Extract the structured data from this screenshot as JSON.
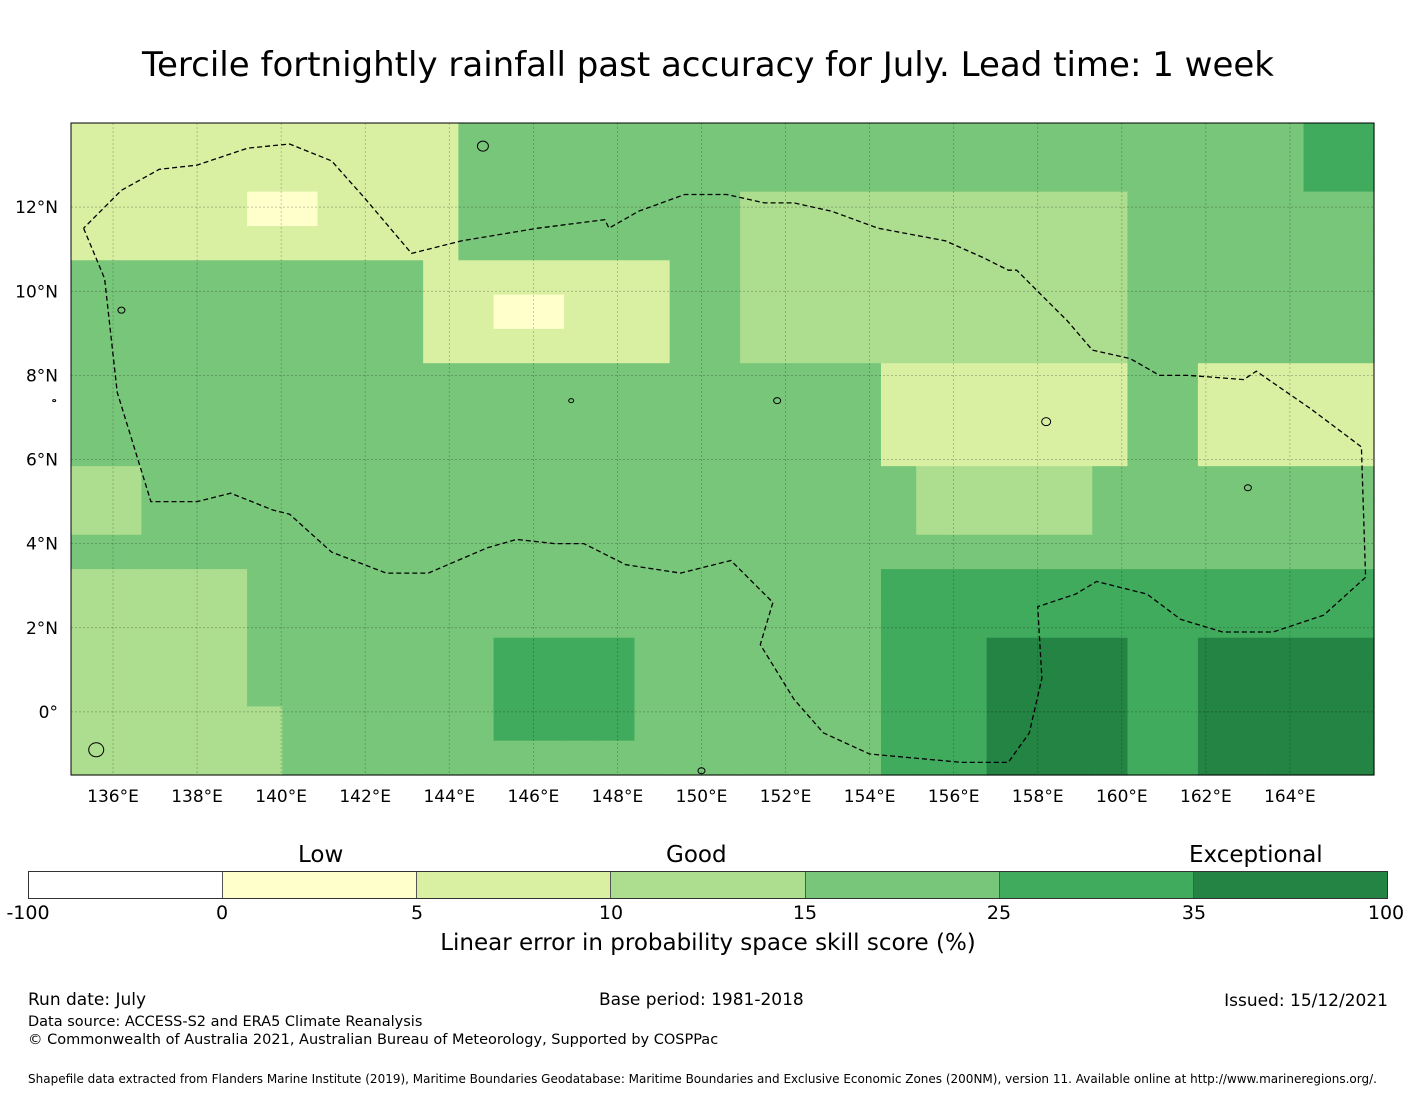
{
  "title": "Tercile fortnightly rainfall past accuracy for July. Lead time: 1 week",
  "map": {
    "lon_range": [
      135,
      166
    ],
    "lat_range": [
      -1.5,
      14
    ],
    "x_ticks": [
      {
        "lon": 136,
        "label": "136°E"
      },
      {
        "lon": 138,
        "label": "138°E"
      },
      {
        "lon": 140,
        "label": "140°E"
      },
      {
        "lon": 142,
        "label": "142°E"
      },
      {
        "lon": 144,
        "label": "144°E"
      },
      {
        "lon": 146,
        "label": "146°E"
      },
      {
        "lon": 148,
        "label": "148°E"
      },
      {
        "lon": 150,
        "label": "150°E"
      },
      {
        "lon": 152,
        "label": "152°E"
      },
      {
        "lon": 154,
        "label": "154°E"
      },
      {
        "lon": 156,
        "label": "156°E"
      },
      {
        "lon": 158,
        "label": "158°E"
      },
      {
        "lon": 160,
        "label": "160°E"
      },
      {
        "lon": 162,
        "label": "162°E"
      },
      {
        "lon": 164,
        "label": "164°E"
      }
    ],
    "y_ticks": [
      {
        "lat": 12,
        "label": "12°N"
      },
      {
        "lat": 10,
        "label": "10°N"
      },
      {
        "lat": 8,
        "label": "8°N"
      },
      {
        "lat": 6,
        "label": "6°N"
      },
      {
        "lat": 4,
        "label": "4°N"
      },
      {
        "lat": 2,
        "label": "2°N"
      },
      {
        "lat": 0,
        "label": "0°"
      }
    ],
    "grid": true,
    "eez_boundary": [
      [
        135.3,
        11.5
      ],
      [
        135.8,
        10.3
      ],
      [
        136.1,
        7.6
      ],
      [
        136.9,
        5.0
      ],
      [
        138,
        5.0
      ],
      [
        138.8,
        5.2
      ],
      [
        139.8,
        4.8
      ],
      [
        140.2,
        4.7
      ],
      [
        141.2,
        3.8
      ],
      [
        142.5,
        3.3
      ],
      [
        143.5,
        3.3
      ],
      [
        144.9,
        3.9
      ],
      [
        145.6,
        4.1
      ],
      [
        146.5,
        4.0
      ],
      [
        147.2,
        4.0
      ],
      [
        148.2,
        3.5
      ],
      [
        149.5,
        3.3
      ],
      [
        150.7,
        3.6
      ],
      [
        151.7,
        2.6
      ],
      [
        151.4,
        1.6
      ],
      [
        152.2,
        0.3
      ],
      [
        152.9,
        -0.5
      ],
      [
        154,
        -1.0
      ],
      [
        156.2,
        -1.2
      ],
      [
        157.3,
        -1.2
      ],
      [
        157.8,
        -0.5
      ],
      [
        158.1,
        0.8
      ],
      [
        158,
        2.5
      ],
      [
        158.9,
        2.8
      ],
      [
        159.4,
        3.1
      ],
      [
        160.2,
        2.9
      ],
      [
        160.6,
        2.8
      ],
      [
        161.4,
        2.2
      ],
      [
        162.4,
        1.9
      ],
      [
        163.6,
        1.9
      ],
      [
        164.8,
        2.3
      ],
      [
        165.8,
        3.2
      ],
      [
        165.7,
        6.3
      ],
      [
        164.5,
        7.2
      ],
      [
        163.2,
        8.1
      ],
      [
        162.9,
        7.9
      ],
      [
        161.6,
        8.0
      ],
      [
        160.9,
        8.0
      ],
      [
        160.2,
        8.4
      ],
      [
        159.3,
        8.6
      ],
      [
        158.7,
        9.3
      ],
      [
        158.2,
        9.8
      ],
      [
        157.5,
        10.5
      ],
      [
        157.3,
        10.5
      ],
      [
        156.7,
        10.8
      ],
      [
        155.8,
        11.2
      ],
      [
        154.2,
        11.5
      ],
      [
        153.1,
        11.9
      ],
      [
        152.2,
        12.1
      ],
      [
        151.5,
        12.1
      ],
      [
        150.6,
        12.3
      ],
      [
        149.6,
        12.3
      ],
      [
        148.5,
        11.9
      ],
      [
        147.8,
        11.5
      ],
      [
        147.7,
        11.7
      ],
      [
        146.1,
        11.5
      ],
      [
        144.3,
        11.2
      ],
      [
        143.5,
        11.0
      ],
      [
        143.1,
        10.9
      ],
      [
        142,
        12.2
      ],
      [
        141.2,
        13.1
      ],
      [
        140.2,
        13.5
      ],
      [
        139.2,
        13.4
      ],
      [
        138,
        13.0
      ],
      [
        137.1,
        12.9
      ],
      [
        136.2,
        12.4
      ],
      [
        135.3,
        11.5
      ]
    ]
  },
  "legend": {
    "category_labels": [
      "Low",
      "Good",
      "Exceptional"
    ],
    "boundaries": [
      "-100",
      "0",
      "5",
      "10",
      "15",
      "25",
      "35",
      "100"
    ],
    "colors": [
      "#ffffff",
      "#ffffcc",
      "#d9f0a3",
      "#addd8e",
      "#78c679",
      "#41ab5d",
      "#238443"
    ],
    "title": "Linear error in probability space skill score (%)"
  },
  "footer": {
    "run_date": "Run date: July",
    "base_period": "Base period: 1981-2018",
    "issued": "Issued: 15/12/2021",
    "data_source": "Data source: ACCESS-S2 and ERA5 Climate Reanalysis",
    "copyright": "© Commonwealth of Australia 2021, Australian Bureau of Meteorology, Supported by COSPPac",
    "shapefile": "Shapefile data extracted from Flanders Marine Institute (2019), Maritime Boundaries Geodatabase: Maritime Boundaries and Exclusive Economic Zones (200NM), version 11. Available online at http://www.marineregions.org/."
  }
}
